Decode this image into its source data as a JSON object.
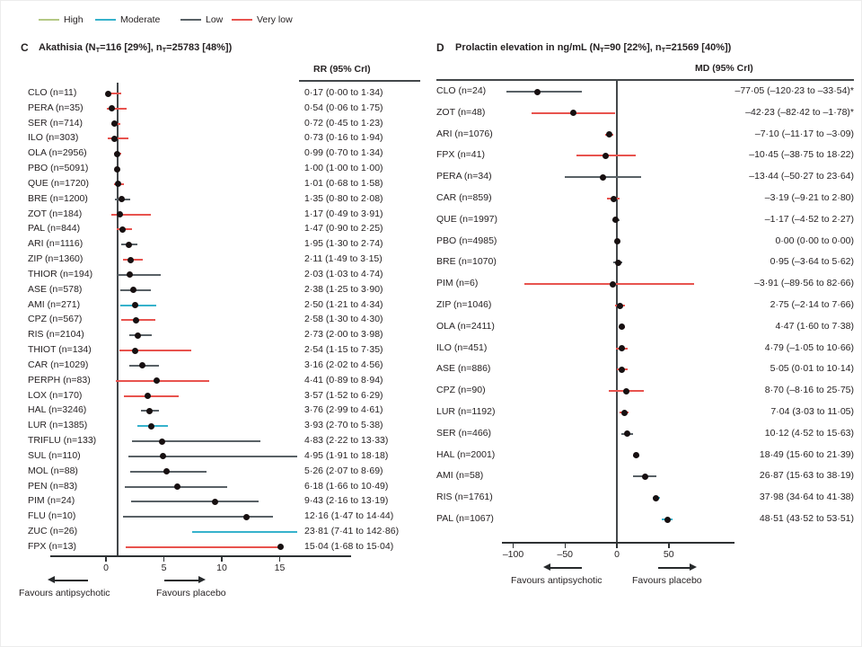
{
  "legend": {
    "items": [
      {
        "label": "High",
        "color": "#b4c884",
        "certainty_key": "high"
      },
      {
        "label": "Moderate",
        "color": "#36b2cc",
        "certainty_key": "moderate"
      },
      {
        "label": "Low",
        "color": "#596166",
        "certainty_key": "low"
      },
      {
        "label": "Very low",
        "color": "#e8534e",
        "certainty_key": "very_low"
      }
    ]
  },
  "colors": {
    "high": "#b4c884",
    "moderate": "#36b2cc",
    "low": "#596166",
    "very_low": "#e8534e",
    "dot": "#171011",
    "axis": "#2e3234"
  },
  "chart_data": [
    {
      "type": "scatter",
      "subtype": "forest-plot",
      "panel": "C",
      "title": "Akathisia (NT=116 [29%], nT=25783 [48%])",
      "title_parts": {
        "p1": "Akathisia (N",
        "s1": "T",
        "p2": "=116 [29%], n",
        "s2": "T",
        "p3": "=25783 [48%])"
      },
      "effect_measure": "RR (95% CrI)",
      "x_ticks": [
        0,
        5,
        10,
        15
      ],
      "x_tick_labels": [
        "0",
        "5",
        "10",
        "15"
      ],
      "x_ref": 1,
      "xlabel_left": "Favours antipsychotic",
      "xlabel_right": "Favours placebo",
      "rows": [
        {
          "label": "CLO (n=11)",
          "value_text": "0·17 (0·00 to 1·34)",
          "point": 0.17,
          "lo": 0.0,
          "hi": 1.34,
          "certainty": "very_low"
        },
        {
          "label": "PERA (n=35)",
          "value_text": "0·54 (0·06 to 1·75)",
          "point": 0.54,
          "lo": 0.06,
          "hi": 1.75,
          "certainty": "very_low"
        },
        {
          "label": "SER (n=714)",
          "value_text": "0·72 (0·45 to 1·23)",
          "point": 0.72,
          "lo": 0.45,
          "hi": 1.23,
          "certainty": "very_low"
        },
        {
          "label": "ILO (n=303)",
          "value_text": "0·73 (0·16 to 1·94)",
          "point": 0.73,
          "lo": 0.16,
          "hi": 1.94,
          "certainty": "very_low"
        },
        {
          "label": "OLA (n=2956)",
          "value_text": "0·99 (0·70 to 1·34)",
          "point": 0.99,
          "lo": 0.7,
          "hi": 1.34,
          "certainty": "very_low"
        },
        {
          "label": "PBO (n=5091)",
          "value_text": "1·00 (1·00 to 1·00)",
          "point": 1.0,
          "lo": 1.0,
          "hi": 1.0,
          "certainty": "none"
        },
        {
          "label": "QUE (n=1720)",
          "value_text": "1·01 (0·68 to 1·58)",
          "point": 1.01,
          "lo": 0.68,
          "hi": 1.58,
          "certainty": "very_low"
        },
        {
          "label": "BRE (n=1200)",
          "value_text": "1·35 (0·80 to 2·08)",
          "point": 1.35,
          "lo": 0.8,
          "hi": 2.08,
          "certainty": "low"
        },
        {
          "label": "ZOT (n=184)",
          "value_text": "1·17 (0·49 to 3·91)",
          "point": 1.17,
          "lo": 0.49,
          "hi": 3.91,
          "certainty": "very_low"
        },
        {
          "label": "PAL (n=844)",
          "value_text": "1·47 (0·90 to 2·25)",
          "point": 1.47,
          "lo": 0.9,
          "hi": 2.25,
          "certainty": "very_low"
        },
        {
          "label": "ARI (n=1116)",
          "value_text": "1·95 (1·30 to 2·74)",
          "point": 1.95,
          "lo": 1.3,
          "hi": 2.74,
          "certainty": "low"
        },
        {
          "label": "ZIP (n=1360)",
          "value_text": "2·11 (1·49 to 3·15)",
          "point": 2.11,
          "lo": 1.49,
          "hi": 3.15,
          "certainty": "very_low"
        },
        {
          "label": "THIOR (n=194)",
          "value_text": "2·03 (1·03 to 4·74)",
          "point": 2.03,
          "lo": 1.03,
          "hi": 4.74,
          "certainty": "low"
        },
        {
          "label": "ASE (n=578)",
          "value_text": "2·38 (1·25 to 3·90)",
          "point": 2.38,
          "lo": 1.25,
          "hi": 3.9,
          "certainty": "low"
        },
        {
          "label": "AMI (n=271)",
          "value_text": "2·50 (1·21 to 4·34)",
          "point": 2.5,
          "lo": 1.21,
          "hi": 4.34,
          "certainty": "moderate"
        },
        {
          "label": "CPZ (n=567)",
          "value_text": "2·58 (1·30 to 4·30)",
          "point": 2.58,
          "lo": 1.3,
          "hi": 4.3,
          "certainty": "very_low"
        },
        {
          "label": "RIS (n=2104)",
          "value_text": "2·73 (2·00 to 3·98)",
          "point": 2.73,
          "lo": 2.0,
          "hi": 3.98,
          "certainty": "low"
        },
        {
          "label": "THIOT (n=134)",
          "value_text": "2·54 (1·15 to 7·35)",
          "point": 2.54,
          "lo": 1.15,
          "hi": 7.35,
          "certainty": "very_low"
        },
        {
          "label": "CAR (n=1029)",
          "value_text": "3·16 (2·02 to 4·56)",
          "point": 3.16,
          "lo": 2.02,
          "hi": 4.56,
          "certainty": "low"
        },
        {
          "label": "PERPH (n=83)",
          "value_text": "4·41 (0·89 to 8·94)",
          "point": 4.41,
          "lo": 0.89,
          "hi": 8.94,
          "certainty": "very_low"
        },
        {
          "label": "LOX (n=170)",
          "value_text": "3·57 (1·52 to 6·29)",
          "point": 3.57,
          "lo": 1.52,
          "hi": 6.29,
          "certainty": "very_low"
        },
        {
          "label": "HAL (n=3246)",
          "value_text": "3·76 (2·99 to 4·61)",
          "point": 3.76,
          "lo": 2.99,
          "hi": 4.61,
          "certainty": "low"
        },
        {
          "label": "LUR (n=1385)",
          "value_text": "3·93 (2·70 to 5·38)",
          "point": 3.93,
          "lo": 2.7,
          "hi": 5.38,
          "certainty": "moderate"
        },
        {
          "label": "TRIFLU (n=133)",
          "value_text": "4·83 (2·22 to 13·33)",
          "point": 4.83,
          "lo": 2.22,
          "hi": 13.33,
          "certainty": "low"
        },
        {
          "label": "SUL (n=110)",
          "value_text": "4·95 (1·91 to 18·18)",
          "point": 4.95,
          "lo": 1.91,
          "hi": 18.18,
          "certainty": "low",
          "clip": "hi"
        },
        {
          "label": "MOL (n=88)",
          "value_text": "5·26 (2·07 to 8·69)",
          "point": 5.26,
          "lo": 2.07,
          "hi": 8.69,
          "certainty": "low"
        },
        {
          "label": "PEN (n=83)",
          "value_text": "6·18 (1·66 to 10·49)",
          "point": 6.18,
          "lo": 1.66,
          "hi": 10.49,
          "certainty": "low"
        },
        {
          "label": "PIM (n=24)",
          "value_text": "9·43 (2·16 to 13·19)",
          "point": 9.43,
          "lo": 2.16,
          "hi": 13.19,
          "certainty": "low"
        },
        {
          "label": "FLU (n=10)",
          "value_text": "12·16 (1·47 to 14·44)",
          "point": 12.16,
          "lo": 1.47,
          "hi": 14.44,
          "certainty": "low"
        },
        {
          "label": "ZUC (n=26)",
          "value_text": "23·81 (7·41 to 142·86)",
          "point": 23.81,
          "lo": 7.41,
          "hi": 142.86,
          "certainty": "moderate",
          "clip": "hi"
        },
        {
          "label": "FPX (n=13)",
          "value_text": "15·04 (1·68 to 15·04)",
          "point": 15.04,
          "lo": 1.68,
          "hi": 15.04,
          "certainty": "very_low"
        }
      ]
    },
    {
      "type": "scatter",
      "subtype": "forest-plot",
      "panel": "D",
      "title": "Prolactin elevation in ng/mL (NT=90 [22%], nT=21569 [40%])",
      "title_parts": {
        "p1": "Prolactin elevation in ng/mL (N",
        "s1": "T",
        "p2": "=90 [22%], n",
        "s2": "T",
        "p3": "=21569 [40%])"
      },
      "effect_measure": "MD (95% CrI)",
      "x_ticks": [
        -100,
        -50,
        0,
        50
      ],
      "x_tick_labels": [
        "–100",
        "–50",
        "0",
        "50"
      ],
      "x_ref": 0,
      "xlabel_left": "Favours antipsychotic",
      "xlabel_right": "Favours placebo",
      "rows": [
        {
          "label": "CLO (n=24)",
          "value_text": "–77·05 (–120·23 to –33·54)*",
          "point": -77.05,
          "lo": -120.23,
          "hi": -33.54,
          "certainty": "low",
          "clip": "lo"
        },
        {
          "label": "ZOT (n=48)",
          "value_text": "–42·23 (–82·42 to –1·78)*",
          "point": -42.23,
          "lo": -82.42,
          "hi": -1.78,
          "certainty": "very_low"
        },
        {
          "label": "ARI (n=1076)",
          "value_text": "–7·10 (–11·17 to –3·09)",
          "point": -7.1,
          "lo": -11.17,
          "hi": -3.09,
          "certainty": "very_low"
        },
        {
          "label": "FPX (n=41)",
          "value_text": "–10·45 (–38·75 to 18·22)",
          "point": -10.45,
          "lo": -38.75,
          "hi": 18.22,
          "certainty": "very_low"
        },
        {
          "label": "PERA (n=34)",
          "value_text": "–13·44 (–50·27 to 23·64)",
          "point": -13.44,
          "lo": -50.27,
          "hi": 23.64,
          "certainty": "low"
        },
        {
          "label": "CAR (n=859)",
          "value_text": "–3·19 (–9·21 to 2·80)",
          "point": -3.19,
          "lo": -9.21,
          "hi": 2.8,
          "certainty": "very_low"
        },
        {
          "label": "QUE (n=1997)",
          "value_text": "–1·17 (–4·52 to 2·27)",
          "point": -1.17,
          "lo": -4.52,
          "hi": 2.27,
          "certainty": "low"
        },
        {
          "label": "PBO (n=4985)",
          "value_text": "0·00 (0·00 to 0·00)",
          "point": 0.0,
          "lo": 0.0,
          "hi": 0.0,
          "certainty": "none"
        },
        {
          "label": "BRE (n=1070)",
          "value_text": "0·95 (–3·64 to 5·62)",
          "point": 0.95,
          "lo": -3.64,
          "hi": 5.62,
          "certainty": "low"
        },
        {
          "label": "PIM (n=6)",
          "value_text": "–3·91 (–89·56 to 82·66)",
          "point": -3.91,
          "lo": -89.56,
          "hi": 82.66,
          "certainty": "very_low",
          "clip": "hi"
        },
        {
          "label": "ZIP (n=1046)",
          "value_text": "2·75 (–2·14 to 7·66)",
          "point": 2.75,
          "lo": -2.14,
          "hi": 7.66,
          "certainty": "very_low"
        },
        {
          "label": "OLA (n=2411)",
          "value_text": "4·47 (1·60 to 7·38)",
          "point": 4.47,
          "lo": 1.6,
          "hi": 7.38,
          "certainty": "very_low"
        },
        {
          "label": "ILO (n=451)",
          "value_text": "4·79 (–1·05 to 10·66)",
          "point": 4.79,
          "lo": -1.05,
          "hi": 10.66,
          "certainty": "very_low"
        },
        {
          "label": "ASE (n=886)",
          "value_text": "5·05 (0·01 to 10·14)",
          "point": 5.05,
          "lo": 0.01,
          "hi": 10.14,
          "certainty": "very_low"
        },
        {
          "label": "CPZ (n=90)",
          "value_text": "8·70 (–8·16 to 25·75)",
          "point": 8.7,
          "lo": -8.16,
          "hi": 25.75,
          "certainty": "very_low"
        },
        {
          "label": "LUR (n=1192)",
          "value_text": "7·04 (3·03 to 11·05)",
          "point": 7.04,
          "lo": 3.03,
          "hi": 11.05,
          "certainty": "very_low"
        },
        {
          "label": "SER (n=466)",
          "value_text": "10·12 (4·52 to 15·63)",
          "point": 10.12,
          "lo": 4.52,
          "hi": 15.63,
          "certainty": "low"
        },
        {
          "label": "HAL (n=2001)",
          "value_text": "18·49 (15·60 to 21·39)",
          "point": 18.49,
          "lo": 15.6,
          "hi": 21.39,
          "certainty": "low"
        },
        {
          "label": "AMI (n=58)",
          "value_text": "26·87 (15·63 to 38·19)",
          "point": 26.87,
          "lo": 15.63,
          "hi": 38.19,
          "certainty": "low"
        },
        {
          "label": "RIS (n=1761)",
          "value_text": "37·98 (34·64 to 41·38)",
          "point": 37.98,
          "lo": 34.64,
          "hi": 41.38,
          "certainty": "moderate"
        },
        {
          "label": "PAL (n=1067)",
          "value_text": "48·51 (43·52 to 53·51)",
          "point": 48.51,
          "lo": 43.52,
          "hi": 53.51,
          "certainty": "moderate"
        }
      ]
    }
  ]
}
